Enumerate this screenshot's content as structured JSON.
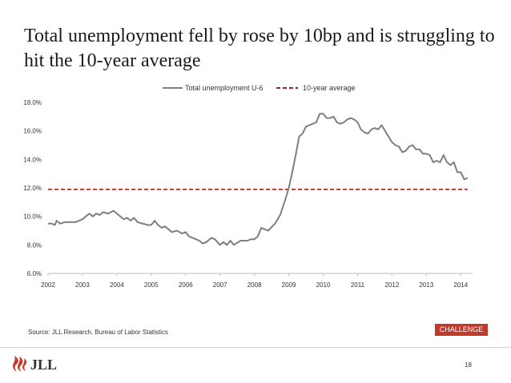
{
  "slide": {
    "title": "Total unemployment fell by rose by 10bp and is struggling to hit the 10-year average",
    "source": "Source: JLL Research, Bureau of Labor Statistics",
    "badge": "CHALLENGE",
    "page_number": "18",
    "logo_text": "JLL",
    "accent_color": "#c0392b"
  },
  "chart_data": {
    "type": "line",
    "title": "",
    "xlabel": "",
    "ylabel": "",
    "xlim": [
      2002,
      2014.25
    ],
    "ylim": [
      6,
      18
    ],
    "grid": false,
    "legend_position": "top-center",
    "y_ticks": [
      6,
      8,
      10,
      12,
      14,
      16,
      18
    ],
    "y_tick_labels": [
      "6.0%",
      "8.0%",
      "10.0%",
      "12.0%",
      "14.0%",
      "16.0%",
      "18.0%"
    ],
    "x_ticks": [
      2002,
      2003,
      2004,
      2005,
      2006,
      2007,
      2008,
      2009,
      2010,
      2011,
      2012,
      2013,
      2014
    ],
    "x_tick_labels": [
      "2002",
      "2003",
      "2004",
      "2005",
      "2006",
      "2007",
      "2008",
      "2009",
      "2010",
      "2011",
      "2012",
      "2013",
      "2014"
    ],
    "series": [
      {
        "name": "Total unemployment U-6",
        "color": "#7f7f7f",
        "style": "solid",
        "x": [
          2002.0,
          2002.1,
          2002.2,
          2002.25,
          2002.35,
          2002.5,
          2002.6,
          2002.8,
          2003.0,
          2003.1,
          2003.2,
          2003.3,
          2003.4,
          2003.5,
          2003.6,
          2003.75,
          2003.9,
          2004.0,
          2004.1,
          2004.2,
          2004.3,
          2004.4,
          2004.5,
          2004.6,
          2004.75,
          2004.9,
          2005.0,
          2005.1,
          2005.2,
          2005.3,
          2005.4,
          2005.5,
          2005.6,
          2005.75,
          2005.9,
          2006.0,
          2006.1,
          2006.2,
          2006.3,
          2006.4,
          2006.5,
          2006.6,
          2006.75,
          2006.85,
          2007.0,
          2007.1,
          2007.2,
          2007.3,
          2007.4,
          2007.6,
          2007.8,
          2007.9,
          2008.0,
          2008.1,
          2008.2,
          2008.4,
          2008.6,
          2008.75,
          2008.9,
          2009.0,
          2009.1,
          2009.2,
          2009.3,
          2009.4,
          2009.5,
          2009.6,
          2009.7,
          2009.8,
          2009.9,
          2010.0,
          2010.1,
          2010.2,
          2010.3,
          2010.4,
          2010.5,
          2010.6,
          2010.7,
          2010.8,
          2010.9,
          2011.0,
          2011.1,
          2011.2,
          2011.3,
          2011.4,
          2011.5,
          2011.6,
          2011.7,
          2011.8,
          2011.9,
          2012.0,
          2012.1,
          2012.2,
          2012.3,
          2012.4,
          2012.5,
          2012.6,
          2012.7,
          2012.8,
          2012.9,
          2013.0,
          2013.1,
          2013.2,
          2013.3,
          2013.4,
          2013.5,
          2013.6,
          2013.7,
          2013.8,
          2013.9,
          2014.0,
          2014.1,
          2014.2
        ],
        "values": [
          9.5,
          9.5,
          9.4,
          9.7,
          9.5,
          9.6,
          9.6,
          9.6,
          9.8,
          10.0,
          10.2,
          10.0,
          10.2,
          10.1,
          10.3,
          10.2,
          10.4,
          10.2,
          10.0,
          9.8,
          9.9,
          9.7,
          9.9,
          9.6,
          9.5,
          9.4,
          9.4,
          9.7,
          9.4,
          9.2,
          9.3,
          9.1,
          8.9,
          9.0,
          8.8,
          8.9,
          8.6,
          8.5,
          8.4,
          8.3,
          8.1,
          8.2,
          8.5,
          8.4,
          8.0,
          8.2,
          8.0,
          8.3,
          8.0,
          8.3,
          8.3,
          8.4,
          8.4,
          8.6,
          9.2,
          9.0,
          9.5,
          10.1,
          11.2,
          12.0,
          13.1,
          14.3,
          15.6,
          15.8,
          16.3,
          16.4,
          16.5,
          16.6,
          17.2,
          17.2,
          16.9,
          16.9,
          17.0,
          16.6,
          16.5,
          16.6,
          16.8,
          16.9,
          16.8,
          16.6,
          16.1,
          15.9,
          15.8,
          16.1,
          16.2,
          16.1,
          16.4,
          16.0,
          15.6,
          15.2,
          15.0,
          14.9,
          14.5,
          14.6,
          14.9,
          15.0,
          14.7,
          14.7,
          14.4,
          14.4,
          14.3,
          13.8,
          13.9,
          13.8,
          14.3,
          13.8,
          13.6,
          13.8,
          13.1,
          13.1,
          12.6,
          12.7
        ]
      },
      {
        "name": "10-year average",
        "color": "#a31d1d",
        "style": "dashed",
        "x": [
          2002.0,
          2014.2
        ],
        "values": [
          11.9,
          11.9
        ]
      }
    ]
  }
}
